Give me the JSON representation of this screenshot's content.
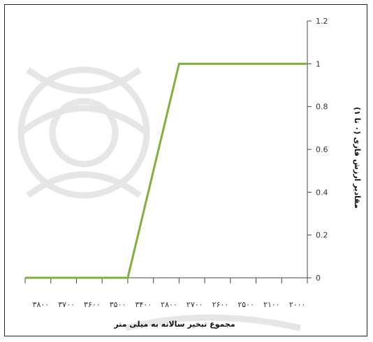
{
  "chart_data": {
    "type": "line",
    "xlabel": "مجموع  تبخیر سالانه به میلی متر",
    "ylabel": "مقادیر ارزش فازی (۰ تا ۱)",
    "x_tick_labels": [
      "۳۸۰۰",
      "۳۷۰۰",
      "۳۶۰۰",
      "۳۵۰۰",
      "۳۴۰۰",
      "۲۸۰۰",
      "۲۷۰۰",
      "۲۶۰۰",
      "۲۵۰۰",
      "۲۱۰۰",
      "۲۰۰۰"
    ],
    "y_ticks": [
      0,
      0.2,
      0.4,
      0.6,
      0.8,
      1,
      1.2
    ],
    "y_tick_labels": [
      "0",
      "0.2",
      "0.4",
      "0.6",
      "0.8",
      "1",
      "1.2"
    ],
    "ylim": [
      0,
      1.2
    ],
    "x_axis_reversed": true,
    "y_axis_position": "right",
    "grid": false,
    "series": [
      {
        "color": "#7fb03c",
        "x": [
          3800,
          3400,
          2800,
          2000
        ],
        "y": [
          0,
          0,
          1,
          1
        ]
      }
    ]
  }
}
